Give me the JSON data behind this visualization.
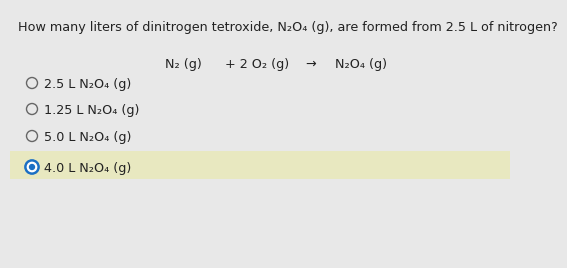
{
  "background_color": "#e8e8e8",
  "question_line1": "How many liters of dinitrogen tetroxide, N",
  "question_n2o4_sub": "2",
  "question_n2o4_sub2": "4",
  "question_line1_end": " are formed from 2.5 L of nitrogen?",
  "question_full": "How many liters of dinitrogen tetroxide, N₂O₄ (g), are formed from 2.5 L of nitrogen?",
  "equation_parts": [
    "N₂ (g)",
    "+ 2 O₂ (g)",
    "→",
    "N₂O₄ (g)"
  ],
  "options": [
    {
      "label": "2.5 L N₂O₄ (g)",
      "selected": false
    },
    {
      "label": "1.25 L N₂O₄ (g)",
      "selected": false
    },
    {
      "label": "5.0 L N₂O₄ (g)",
      "selected": false
    },
    {
      "label": "4.0 L N₂O₄ (g)",
      "selected": true
    }
  ],
  "question_fontsize": 9.2,
  "equation_fontsize": 9.2,
  "option_fontsize": 9.2,
  "selected_color": "#1a6fc4",
  "unselected_color": "#666666",
  "highlight_color": "#e8e8c0",
  "text_color": "#222222",
  "white_bg": "#f0f0f0"
}
